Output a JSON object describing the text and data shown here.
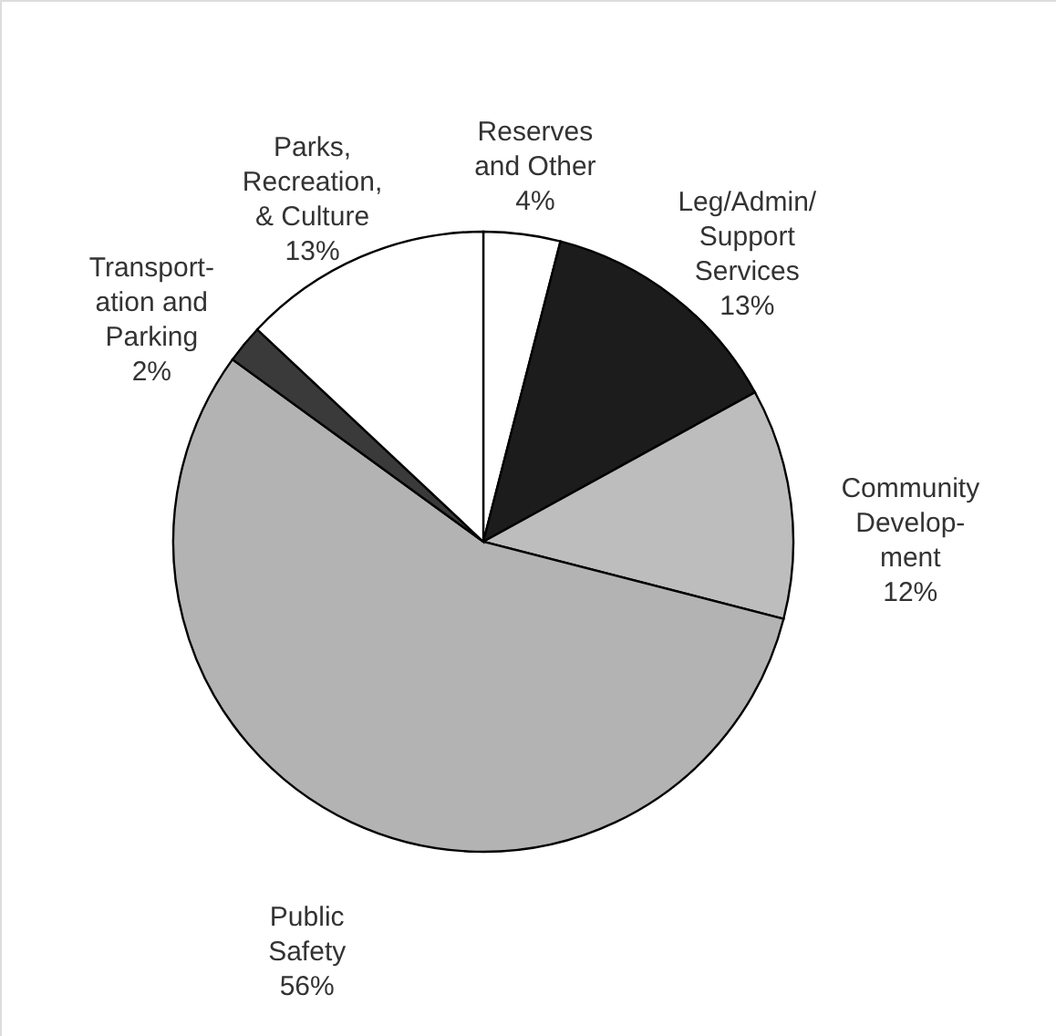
{
  "chart_data": {
    "type": "pie",
    "categories": [
      "Reserves\nand Other",
      "Leg/Admin/\nSupport\nServices",
      "Community\nDevelop-\nment",
      "Public\nSafety",
      "Transport-\nation and\nParking",
      "Parks,\nRecreation,\n& Culture"
    ],
    "values": [
      4,
      13,
      12,
      56,
      2,
      13
    ],
    "value_labels": [
      "4%",
      "13%",
      "12%",
      "56%",
      "2%",
      "13%"
    ],
    "colors": [
      "#ffffff",
      "#1c1c1c",
      "#bdbdbd",
      "#b3b3b3",
      "#3a3a3a",
      "#ffffff"
    ]
  }
}
